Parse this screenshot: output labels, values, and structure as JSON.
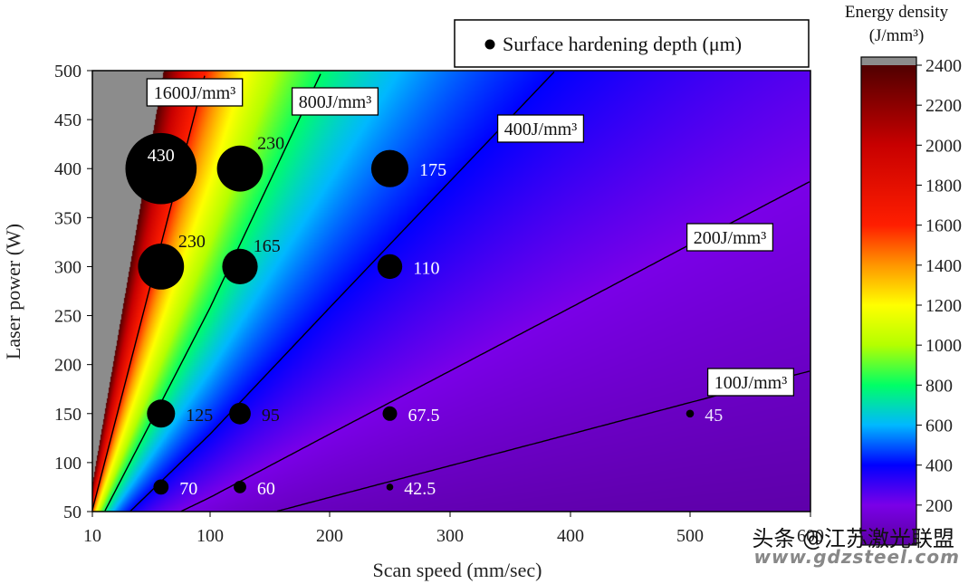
{
  "chart_data": {
    "type": "contour",
    "xlabel": "Scan speed (mm/sec)",
    "ylabel": "Laser power (W)",
    "x_ticks": [
      10,
      100,
      200,
      300,
      400,
      500,
      600
    ],
    "y_ticks": [
      50,
      100,
      150,
      200,
      250,
      300,
      350,
      400,
      450,
      500
    ],
    "xlim": [
      10,
      600
    ],
    "ylim": [
      50,
      500
    ],
    "colorbar": {
      "title_line1": "Energy density",
      "title_line2": "(J/mm³)",
      "ticks": [
        200,
        400,
        600,
        800,
        1000,
        1200,
        1400,
        1600,
        1800,
        2000,
        2200,
        2400
      ],
      "range": [
        0,
        2400
      ],
      "over_color": "#8c8c8c"
    },
    "contours": [
      {
        "value": 1600,
        "label": "1600J/mm³"
      },
      {
        "value": 800,
        "label": "800J/mm³"
      },
      {
        "value": 400,
        "label": "400J/mm³"
      },
      {
        "value": 200,
        "label": "200J/mm³"
      },
      {
        "value": 100,
        "label": "100J/mm³"
      }
    ],
    "legend": {
      "label": "Surface hardening depth (μm)",
      "position": "top-right"
    },
    "points": [
      {
        "x": 62.5,
        "y": 400,
        "depth": 430,
        "label": "430"
      },
      {
        "x": 125,
        "y": 400,
        "depth": 230,
        "label": "230"
      },
      {
        "x": 250,
        "y": 400,
        "depth": 175,
        "label": "175"
      },
      {
        "x": 62.5,
        "y": 300,
        "depth": 230,
        "label": "230"
      },
      {
        "x": 125,
        "y": 300,
        "depth": 165,
        "label": "165"
      },
      {
        "x": 250,
        "y": 300,
        "depth": 110,
        "label": "110"
      },
      {
        "x": 62.5,
        "y": 150,
        "depth": 125,
        "label": "125"
      },
      {
        "x": 125,
        "y": 150,
        "depth": 95,
        "label": "95"
      },
      {
        "x": 250,
        "y": 150,
        "depth": 67.5,
        "label": "67.5"
      },
      {
        "x": 500,
        "y": 150,
        "depth": 45,
        "label": "45"
      },
      {
        "x": 62.5,
        "y": 75,
        "depth": 70,
        "label": "70"
      },
      {
        "x": 125,
        "y": 75,
        "depth": 60,
        "label": "60"
      },
      {
        "x": 250,
        "y": 75,
        "depth": 42.5,
        "label": "42.5"
      }
    ]
  },
  "watermark": {
    "line1": "头条 @江苏激光联盟",
    "line2": "www.gdzsteel.com"
  }
}
